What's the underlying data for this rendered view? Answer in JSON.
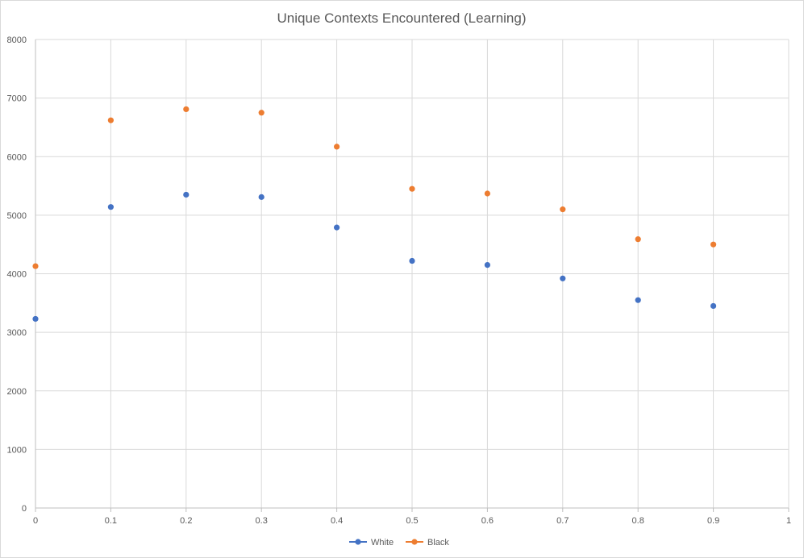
{
  "chart_data": {
    "type": "scatter",
    "title": "Unique Contexts Encountered (Learning)",
    "xlabel": "",
    "ylabel": "",
    "xlim": [
      0,
      1
    ],
    "ylim": [
      0,
      8000
    ],
    "x_ticks": [
      "0",
      "0.1",
      "0.2",
      "0.3",
      "0.4",
      "0.5",
      "0.6",
      "0.7",
      "0.8",
      "0.9",
      "1"
    ],
    "y_ticks": [
      "0",
      "1000",
      "2000",
      "3000",
      "4000",
      "5000",
      "6000",
      "7000",
      "8000"
    ],
    "grid": true,
    "legend_position": "bottom",
    "series": [
      {
        "name": "White",
        "color": "#4472C4",
        "x": [
          0,
          0.1,
          0.2,
          0.3,
          0.4,
          0.5,
          0.6,
          0.7,
          0.8,
          0.9
        ],
        "y": [
          3230,
          5140,
          5350,
          5310,
          4790,
          4220,
          4150,
          3920,
          3550,
          3450
        ]
      },
      {
        "name": "Black",
        "color": "#ED7D31",
        "x": [
          0,
          0.1,
          0.2,
          0.3,
          0.4,
          0.5,
          0.6,
          0.7,
          0.8,
          0.9
        ],
        "y": [
          4130,
          6620,
          6810,
          6750,
          6170,
          5450,
          5370,
          5100,
          4590,
          4500
        ]
      }
    ]
  }
}
